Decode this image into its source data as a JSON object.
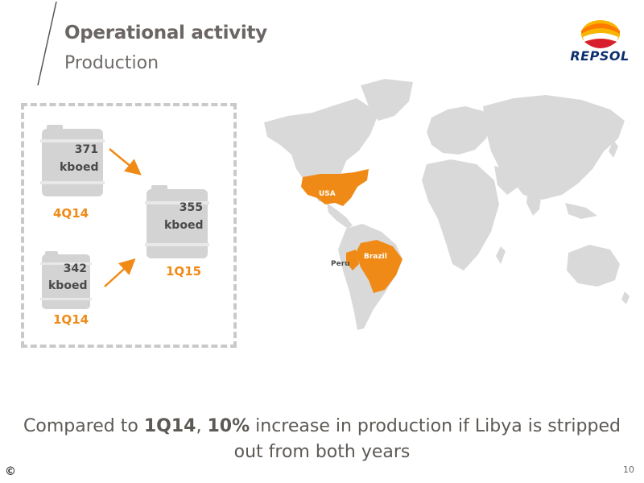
{
  "header": {
    "title": "Operational activity",
    "subtitle": "Production"
  },
  "logo": {
    "text": "REPSOL"
  },
  "production": {
    "q4_2014": {
      "value": "371",
      "unit": "kboed",
      "period": "4Q14"
    },
    "q1_2015": {
      "value": "355",
      "unit": "kboed",
      "period": "1Q15"
    },
    "q1_2014": {
      "value": "342",
      "unit": "kboed",
      "period": "1Q14"
    }
  },
  "map": {
    "highlight_color": "#f08a16",
    "base_color": "#d9d9d9",
    "labels": {
      "usa": "USA",
      "brazil": "Brazil",
      "peru": "Peru"
    }
  },
  "footer": {
    "pre": "Compared to ",
    "q": "1Q14",
    "mid": ", ",
    "pct": "10%",
    "post": " increase in production if Libya is stripped",
    "line2": "out from both years"
  },
  "copyright": "©",
  "page_number": "10"
}
